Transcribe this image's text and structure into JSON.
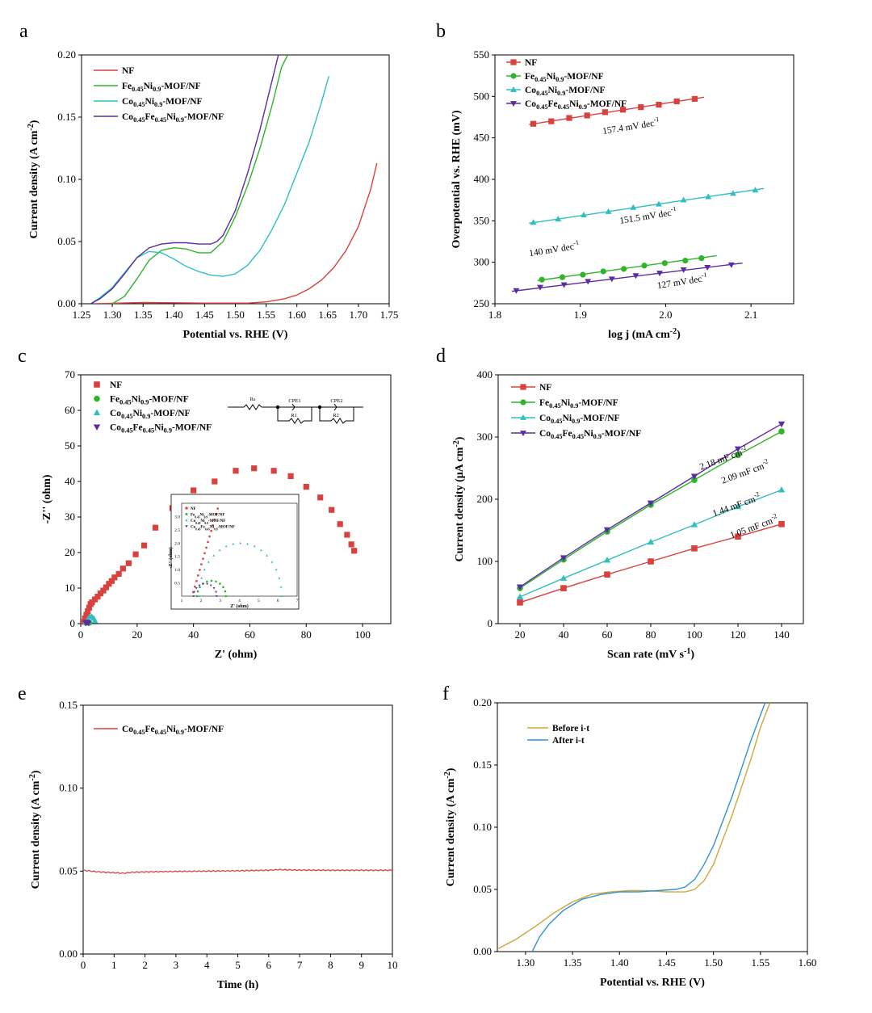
{
  "colors": {
    "nf": "#d9413f",
    "fe": "#2fb52a",
    "co": "#2fbfc1",
    "cofe": "#5b2ca3",
    "before": "#cda63c",
    "after": "#2f93d1"
  },
  "chart_data": [
    {
      "panel": "a",
      "type": "line",
      "xlabel": "Potential vs. RHE (V)",
      "ylabel": "Current density (A cm-2)",
      "xlim": [
        1.25,
        1.75
      ],
      "ylim": [
        0,
        0.2
      ],
      "xticks": [
        "1.25",
        "1.30",
        "1.35",
        "1.40",
        "1.45",
        "1.50",
        "1.55",
        "1.60",
        "1.65",
        "1.70",
        "1.75"
      ],
      "yticks": [
        "0.00",
        "0.05",
        "0.10",
        "0.15",
        "0.20"
      ],
      "legend_position": "top-left",
      "series": [
        {
          "name": "NF",
          "legend": "NF",
          "color": "nf",
          "x": [
            1.27,
            1.35,
            1.45,
            1.52,
            1.55,
            1.58,
            1.6,
            1.62,
            1.64,
            1.66,
            1.68,
            1.7,
            1.72,
            1.73
          ],
          "y": [
            0,
            0.001,
            0.0005,
            0.0005,
            0.0015,
            0.004,
            0.007,
            0.012,
            0.019,
            0.029,
            0.043,
            0.062,
            0.092,
            0.113
          ]
        },
        {
          "name": "Fe0.45Ni0.9-MOF/NF",
          "legend": "Fe0.45Ni0.9-MOF/NF",
          "color": "fe",
          "x": [
            1.3,
            1.32,
            1.34,
            1.36,
            1.38,
            1.4,
            1.42,
            1.44,
            1.46,
            1.48,
            1.5,
            1.52,
            1.54,
            1.56,
            1.575,
            1.585
          ],
          "y": [
            0,
            0.006,
            0.02,
            0.035,
            0.043,
            0.045,
            0.044,
            0.041,
            0.041,
            0.05,
            0.07,
            0.095,
            0.125,
            0.16,
            0.19,
            0.2
          ]
        },
        {
          "name": "Co0.45Ni0.9-MOF/NF",
          "legend": "Co0.45Ni0.9-MOF/NF",
          "color": "co",
          "x": [
            1.265,
            1.28,
            1.3,
            1.32,
            1.34,
            1.36,
            1.38,
            1.4,
            1.42,
            1.44,
            1.46,
            1.48,
            1.5,
            1.52,
            1.54,
            1.56,
            1.58,
            1.6,
            1.62,
            1.64,
            1.652
          ],
          "y": [
            0,
            0.005,
            0.013,
            0.025,
            0.037,
            0.042,
            0.041,
            0.036,
            0.03,
            0.026,
            0.023,
            0.022,
            0.024,
            0.031,
            0.043,
            0.06,
            0.08,
            0.105,
            0.13,
            0.162,
            0.183
          ]
        },
        {
          "name": "Co0.45Fe0.45Ni0.9-MOF/NF",
          "legend": "Co0.45Fe0.45Ni0.9-MOF/NF",
          "color": "cofe",
          "x": [
            1.265,
            1.28,
            1.3,
            1.32,
            1.34,
            1.36,
            1.38,
            1.4,
            1.42,
            1.44,
            1.46,
            1.47,
            1.48,
            1.5,
            1.52,
            1.54,
            1.56,
            1.57
          ],
          "y": [
            0,
            0.004,
            0.012,
            0.024,
            0.037,
            0.045,
            0.048,
            0.049,
            0.049,
            0.048,
            0.048,
            0.05,
            0.055,
            0.075,
            0.105,
            0.14,
            0.18,
            0.2
          ]
        }
      ]
    },
    {
      "panel": "b",
      "type": "scatter",
      "xlabel": "log j (mA cm-2)",
      "ylabel": "Overpotential vs. RHE (mV)",
      "xlim": [
        1.8,
        2.15
      ],
      "ylim": [
        250,
        550
      ],
      "xticks": [
        "1.8",
        "1.9",
        "2.0",
        "2.1"
      ],
      "yticks": [
        "250",
        "300",
        "350",
        "400",
        "450",
        "500",
        "550"
      ],
      "legend_position": "top-left",
      "series": [
        {
          "name": "NF",
          "legend": "NF",
          "color": "nf",
          "marker": "square",
          "x": [
            1.845,
            1.866,
            1.887,
            1.908,
            1.929,
            1.95,
            1.971,
            1.992,
            2.013,
            2.034
          ],
          "y": [
            467,
            470,
            474,
            477,
            481,
            484,
            487,
            490,
            494,
            497
          ],
          "fit": [
            [
              1.84,
              466
            ],
            [
              2.045,
              499
            ]
          ]
        },
        {
          "name": "Fe0.45Ni0.9-MOF/NF",
          "legend": "Fe0.45Ni0.9-MOF/NF",
          "color": "fe",
          "marker": "circle",
          "x": [
            1.855,
            1.879,
            1.903,
            1.927,
            1.951,
            1.975,
            1.999,
            2.023,
            2.042
          ],
          "y": [
            279,
            282,
            285,
            289,
            292,
            296,
            299,
            302,
            305
          ],
          "fit": [
            [
              1.85,
              278
            ],
            [
              2.06,
              308
            ]
          ]
        },
        {
          "name": "Co0.45Ni0.9-MOF/NF",
          "legend": "Co0.45Ni0.9-MOF/NF",
          "color": "co",
          "marker": "triangle",
          "x": [
            1.845,
            1.874,
            1.904,
            1.933,
            1.962,
            1.992,
            2.021,
            2.05,
            2.079,
            2.105
          ],
          "y": [
            348,
            352,
            357,
            361,
            366,
            370,
            375,
            379,
            383,
            387
          ],
          "fit": [
            [
              1.84,
              347
            ],
            [
              2.115,
              389
            ]
          ]
        },
        {
          "name": "Co0.45Fe0.45Ni0.9-MOF/NF",
          "legend": "Co0.45Fe0.45Ni0.9-MOF/NF",
          "color": "cofe",
          "marker": "triangle-down",
          "x": [
            1.825,
            1.853,
            1.881,
            1.909,
            1.937,
            1.965,
            1.993,
            2.021,
            2.049,
            2.077
          ],
          "y": [
            266,
            270,
            273,
            277,
            280,
            284,
            287,
            291,
            294,
            297
          ],
          "fit": [
            [
              1.82,
              265
            ],
            [
              2.09,
              299
            ]
          ]
        }
      ],
      "annotations": [
        {
          "text": "157.4 mV dec-1",
          "x": 1.96,
          "y": 460
        },
        {
          "text": "151.5 mV dec-1",
          "x": 1.98,
          "y": 352
        },
        {
          "text": "140 mV dec-1",
          "x": 1.87,
          "y": 312
        },
        {
          "text": "127 mV dec-1",
          "x": 2.02,
          "y": 273
        }
      ]
    },
    {
      "panel": "c",
      "type": "scatter",
      "xlabel": "Z' (ohm)",
      "ylabel": "-Z'' (ohm)",
      "xlim": [
        0,
        110
      ],
      "ylim": [
        0,
        70
      ],
      "xticks": [
        "0",
        "20",
        "40",
        "60",
        "80",
        "100"
      ],
      "yticks": [
        "0",
        "10",
        "20",
        "30",
        "40",
        "50",
        "60",
        "70"
      ],
      "legend_position": "top-left",
      "series": [
        {
          "name": "NF",
          "legend": "NF",
          "color": "nf",
          "marker": "square",
          "x": [
            1,
            1.5,
            2,
            2.5,
            3,
            3.5,
            4,
            5,
            6,
            7,
            8,
            9,
            10,
            11,
            12,
            13.5,
            15,
            17,
            19.5,
            22.5,
            26.5,
            32.5,
            40,
            47.5,
            55,
            61.5,
            68.5,
            74.5,
            80,
            85,
            89,
            92,
            94.5,
            96,
            97
          ],
          "y": [
            0.5,
            1.5,
            2.5,
            3.5,
            4.5,
            5.5,
            6,
            6.8,
            7.6,
            8.5,
            9.3,
            10.2,
            11.2,
            12,
            13,
            14,
            15.5,
            17,
            19.5,
            22,
            27,
            32.5,
            37.5,
            40,
            43,
            43.7,
            43,
            41.5,
            38.5,
            35.5,
            32,
            28,
            25,
            22.3,
            20.5
          ]
        },
        {
          "name": "Fe0.45Ni0.9-MOF/NF",
          "legend": "Fe0.45Ni0.9-MOF/NF",
          "color": "fe",
          "marker": "circle",
          "x": [
            1.8,
            2.2,
            2.6,
            3.0
          ],
          "y": [
            0.2,
            0.5,
            0.5,
            0.2
          ]
        },
        {
          "name": "Co0.45Ni0.9-MOF/NF",
          "legend": "Co0.45Ni0.9-MOF/NF",
          "color": "co",
          "marker": "triangle",
          "x": [
            1.8,
            2.5,
            3.2,
            3.9,
            4.6,
            5.0
          ],
          "y": [
            0.3,
            1.2,
            1.9,
            2.0,
            1.5,
            0.8
          ]
        },
        {
          "name": "Co0.45Fe0.45Ni0.9-MOF/NF",
          "legend": "Co0.45Fe0.45Ni0.9-MOF/NF",
          "color": "cofe",
          "marker": "triangle-down",
          "x": [
            1.8,
            2.1,
            2.4,
            2.7
          ],
          "y": [
            0.2,
            0.4,
            0.4,
            0.2
          ]
        }
      ],
      "circuit": {
        "labels": [
          "Rs",
          "CPE1",
          "R1",
          "CPE2",
          "R2"
        ]
      },
      "inset": {
        "xticks": [
          "1",
          "2",
          "3",
          "4",
          "5",
          "6",
          "7"
        ],
        "yticks": [
          "0.5",
          "1.0",
          "1.5",
          "2.0",
          "2.5",
          "3.0"
        ],
        "xlabel": "Z' (ohm)",
        "ylabel": "-Z'' (ohm)",
        "xlim": [
          1,
          7
        ],
        "ylim": [
          0,
          3.5
        ],
        "legend": [
          "NF",
          "Fe0.45Ni0.9-MOF/NF",
          "Co0.45Ni0.9-MOF/NF",
          "Co0.45Fe0.45Ni0.9-MOF/NF"
        ]
      }
    },
    {
      "panel": "d",
      "type": "line",
      "xlabel": "Scan rate (mV s-1)",
      "ylabel": "Current density (μA cm-2)",
      "xlim": [
        10,
        150
      ],
      "ylim": [
        0,
        400
      ],
      "xticks": [
        "20",
        "40",
        "60",
        "80",
        "100",
        "120",
        "140"
      ],
      "yticks": [
        "0",
        "100",
        "200",
        "300",
        "400"
      ],
      "legend_position": "top-left",
      "categories": [
        20,
        40,
        60,
        80,
        100,
        120,
        140
      ],
      "series": [
        {
          "name": "NF",
          "legend": "NF",
          "color": "nf",
          "marker": "square",
          "values": [
            34,
            57,
            79,
            100,
            121,
            140,
            160
          ]
        },
        {
          "name": "Fe0.45Ni0.9-MOF/NF",
          "legend": "Fe0.45Ni0.9-MOF/NF",
          "color": "fe",
          "marker": "circle",
          "values": [
            57,
            103,
            148,
            191,
            231,
            271,
            309
          ]
        },
        {
          "name": "Co0.45Ni0.9-MOF/NF",
          "legend": "Co0.45Ni0.9-MOF/NF",
          "color": "co",
          "marker": "triangle",
          "values": [
            43,
            73,
            102,
            131,
            159,
            188,
            215
          ]
        },
        {
          "name": "Co0.45Fe0.45Ni0.9-MOF/NF",
          "legend": "Co0.45Fe0.45Ni0.9-MOF/NF",
          "color": "cofe",
          "marker": "triangle-down",
          "values": [
            59,
            106,
            151,
            194,
            237,
            281,
            321
          ]
        }
      ],
      "annotations": [
        {
          "text": "2.18 mF cm-2",
          "x": 103,
          "y": 247
        },
        {
          "text": "2.09 mF cm-2",
          "x": 113,
          "y": 225
        },
        {
          "text": "1.44 mF cm-2",
          "x": 109,
          "y": 172
        },
        {
          "text": "1.05 mF cm-2",
          "x": 117,
          "y": 137
        }
      ]
    },
    {
      "panel": "e",
      "type": "line",
      "xlabel": "Time (h)",
      "ylabel": "Current density (A cm-2)",
      "xlim": [
        0,
        10
      ],
      "ylim": [
        0,
        0.15
      ],
      "xticks": [
        "0",
        "1",
        "2",
        "3",
        "4",
        "5",
        "6",
        "7",
        "8",
        "9",
        "10"
      ],
      "yticks": [
        "0.00",
        "0.05",
        "0.10",
        "0.15"
      ],
      "legend_position": "top-left",
      "series": [
        {
          "name": "Co0.45Fe0.45Ni0.9-MOF/NF",
          "legend": "Co0.45Fe0.45Ni0.9-MOF/NF",
          "color": "nf",
          "x": [
            0,
            0.5,
            1,
            1.3,
            1.6,
            2,
            3,
            4,
            5,
            6,
            6.3,
            7,
            8,
            9,
            10
          ],
          "y": [
            0.0505,
            0.0495,
            0.049,
            0.0487,
            0.0493,
            0.0495,
            0.0498,
            0.05,
            0.0502,
            0.0505,
            0.0509,
            0.0506,
            0.0505,
            0.0505,
            0.0505
          ]
        }
      ]
    },
    {
      "panel": "f",
      "type": "line",
      "xlabel": "Potential vs. RHE (V)",
      "ylabel": "Current density (A cm-2)",
      "xlim": [
        1.27,
        1.6
      ],
      "ylim": [
        0,
        0.2
      ],
      "xticks": [
        "1.30",
        "1.35",
        "1.40",
        "1.45",
        "1.50",
        "1.55",
        "1.60"
      ],
      "yticks": [
        "0.00",
        "0.05",
        "0.10",
        "0.15",
        "0.20"
      ],
      "legend_position": "top-left",
      "series": [
        {
          "name": "Before i-t",
          "legend": "Before i-t",
          "color": "before",
          "x": [
            1.27,
            1.29,
            1.31,
            1.33,
            1.35,
            1.37,
            1.39,
            1.41,
            1.43,
            1.45,
            1.47,
            1.48,
            1.49,
            1.5,
            1.52,
            1.54,
            1.55,
            1.56
          ],
          "y": [
            0.002,
            0.01,
            0.02,
            0.031,
            0.04,
            0.046,
            0.048,
            0.049,
            0.049,
            0.048,
            0.048,
            0.05,
            0.057,
            0.07,
            0.11,
            0.155,
            0.18,
            0.2
          ]
        },
        {
          "name": "After i-t",
          "legend": "After i-t",
          "color": "after",
          "x": [
            1.307,
            1.315,
            1.325,
            1.34,
            1.36,
            1.38,
            1.4,
            1.42,
            1.44,
            1.46,
            1.47,
            1.48,
            1.49,
            1.5,
            1.52,
            1.54,
            1.555
          ],
          "y": [
            0,
            0.012,
            0.022,
            0.033,
            0.042,
            0.046,
            0.048,
            0.048,
            0.049,
            0.05,
            0.052,
            0.058,
            0.07,
            0.085,
            0.125,
            0.17,
            0.2
          ]
        }
      ]
    }
  ]
}
